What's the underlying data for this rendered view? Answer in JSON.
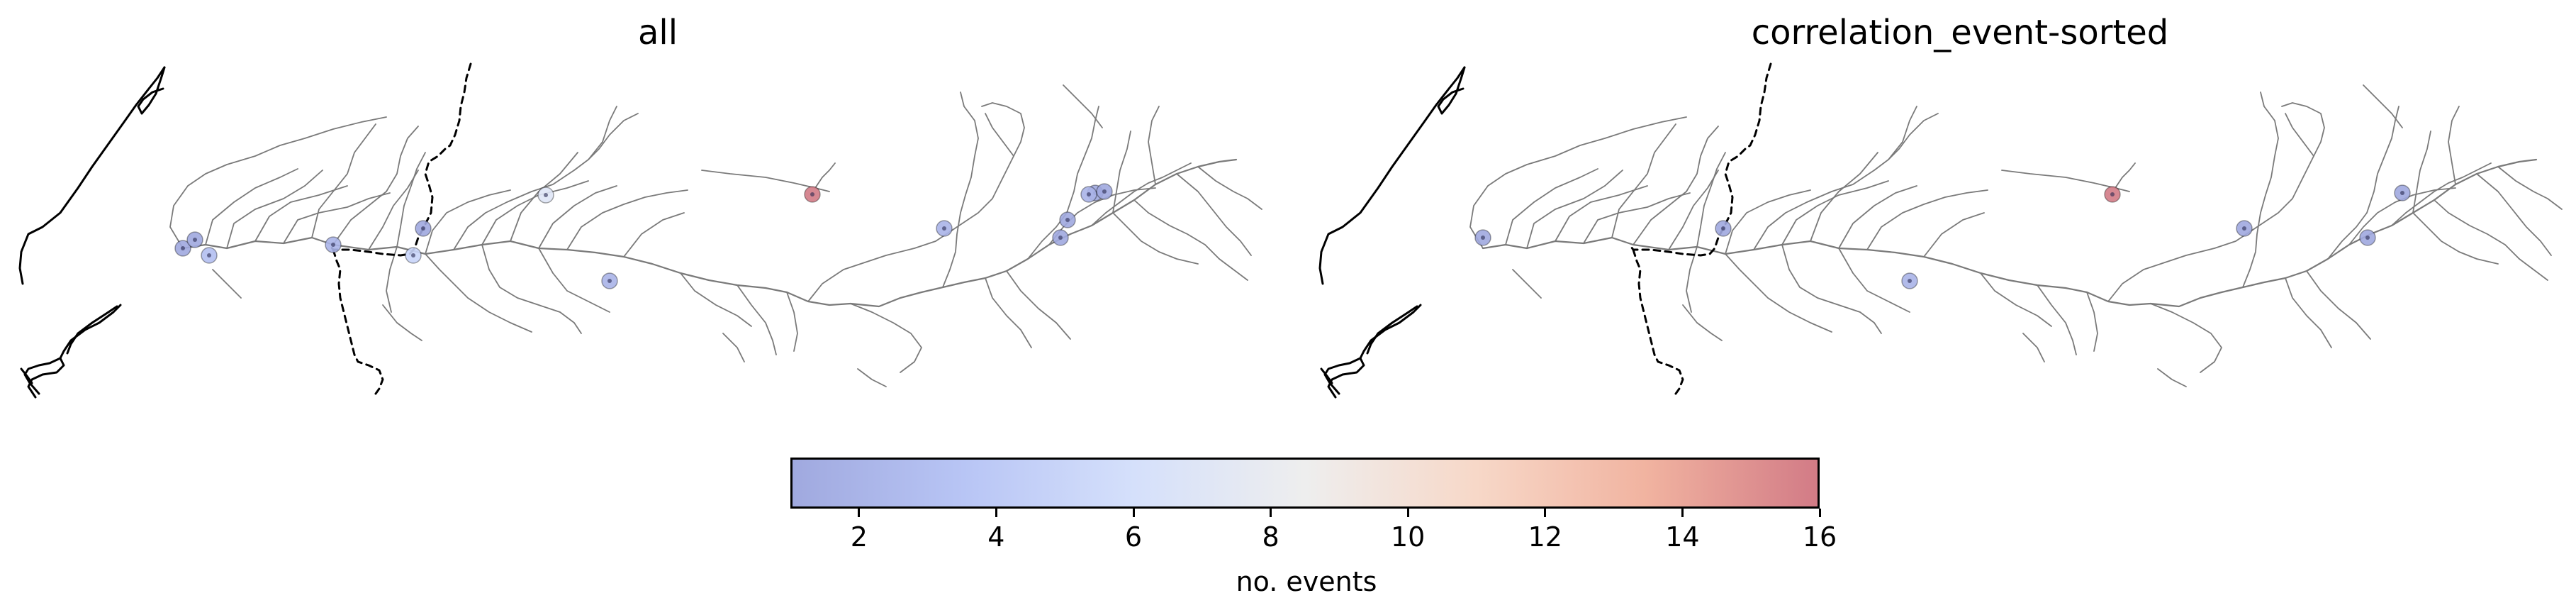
{
  "panels": [
    {
      "title": "all"
    },
    {
      "title": "correlation_event-sorted"
    }
  ],
  "colorbar": {
    "label": "no. events",
    "min": 1,
    "max": 16,
    "ticks": [
      "2",
      "4",
      "6",
      "8",
      "10",
      "12",
      "14",
      "16"
    ],
    "colormap": "coolwarm",
    "stops": [
      "#a0a9df",
      "#b8c5f5",
      "#d5e0fb",
      "#eeeeee",
      "#f7d8c8",
      "#f1b3a0",
      "#d27b86"
    ]
  },
  "colors": {
    "river": "#7a7a7a",
    "coast": "#000000",
    "border": "#000000"
  },
  "stations_all": [
    {
      "id": "a1",
      "events": 1
    },
    {
      "id": "a2",
      "events": 1
    },
    {
      "id": "a3",
      "events": 3
    },
    {
      "id": "a4",
      "events": 2
    },
    {
      "id": "a5",
      "events": 5
    },
    {
      "id": "a6",
      "events": 1
    },
    {
      "id": "a7",
      "events": 7
    },
    {
      "id": "a8",
      "events": 2
    },
    {
      "id": "a9",
      "events": 16
    },
    {
      "id": "a10",
      "events": 2
    },
    {
      "id": "a11",
      "events": 1
    },
    {
      "id": "a12",
      "events": 1
    },
    {
      "id": "a13",
      "events": 1
    },
    {
      "id": "a14",
      "events": 1
    },
    {
      "id": "a15",
      "events": 2
    }
  ],
  "stations_corr": [
    {
      "id": "c1",
      "events": 1
    },
    {
      "id": "c2",
      "events": 1
    },
    {
      "id": "c3",
      "events": 2
    },
    {
      "id": "c4",
      "events": 16
    },
    {
      "id": "c5",
      "events": 1
    },
    {
      "id": "c6",
      "events": 1
    },
    {
      "id": "c7",
      "events": 1
    }
  ]
}
